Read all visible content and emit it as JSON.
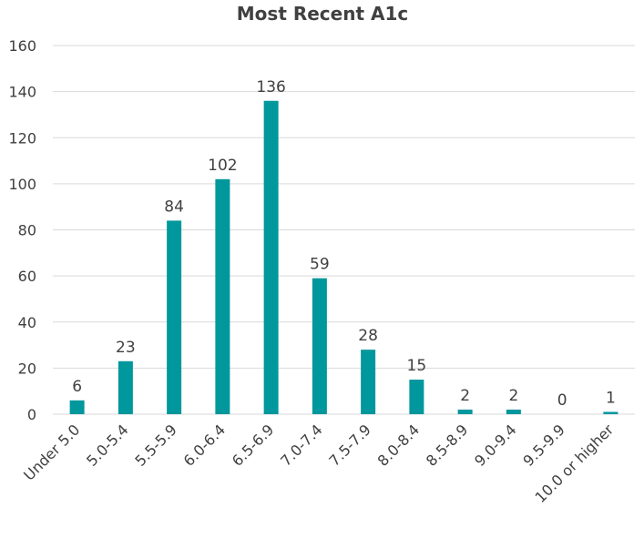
{
  "chart_data": {
    "type": "bar",
    "title": "Most Recent A1c",
    "xlabel": "",
    "ylabel": "",
    "categories": [
      "Under 5.0",
      "5.0-5.4",
      "5.5-5.9",
      "6.0-6.4",
      "6.5-6.9",
      "7.0-7.4",
      "7.5-7.9",
      "8.0-8.4",
      "8.5-8.9",
      "9.0-9.4",
      "9.5-9.9",
      "10.0 or higher"
    ],
    "values": [
      6,
      23,
      84,
      102,
      136,
      59,
      28,
      15,
      2,
      2,
      0,
      1
    ],
    "ylim": [
      0,
      160
    ],
    "yticks": [
      0,
      20,
      40,
      60,
      80,
      100,
      120,
      140,
      160
    ],
    "grid": true,
    "legend": "none",
    "bar_color": "#00979d"
  }
}
